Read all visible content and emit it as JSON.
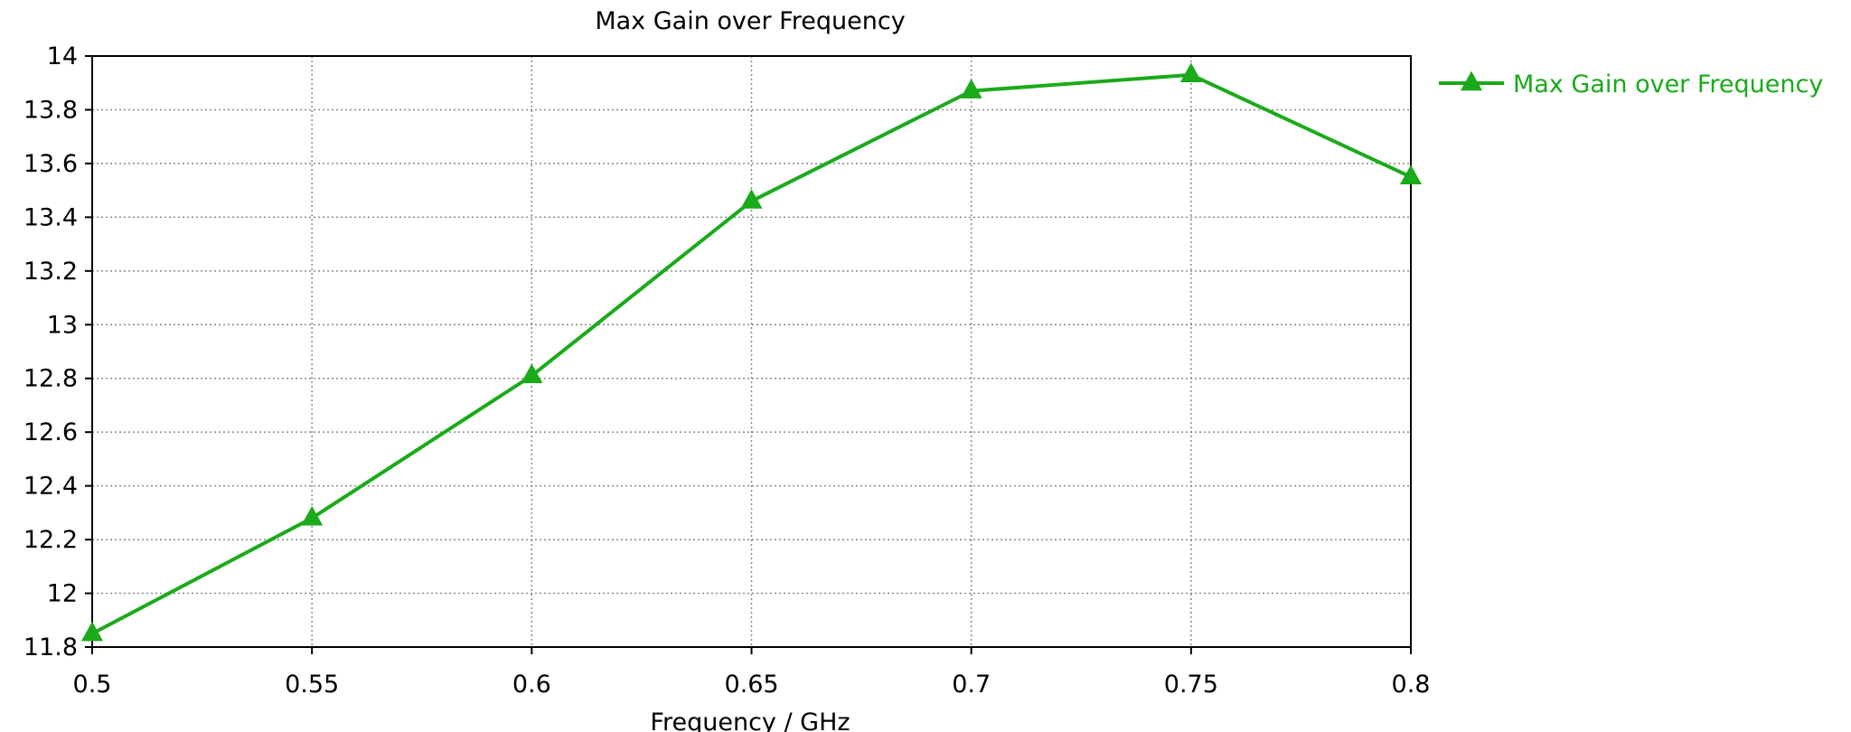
{
  "chart_data": {
    "type": "line",
    "title": "Max Gain over Frequency",
    "xlabel": "Frequency / GHz",
    "ylabel": "",
    "x": [
      0.5,
      0.55,
      0.6,
      0.65,
      0.7,
      0.75,
      0.8
    ],
    "series": [
      {
        "name": "Max Gain over Frequency",
        "values": [
          11.85,
          12.28,
          12.81,
          13.46,
          13.87,
          13.93,
          13.55
        ],
        "color": "#1aaa1a",
        "marker": "triangle"
      }
    ],
    "xlim": [
      0.5,
      0.8
    ],
    "ylim": [
      11.8,
      14
    ],
    "xticks": [
      "0.5",
      "0.55",
      "0.6",
      "0.65",
      "0.7",
      "0.75",
      "0.8"
    ],
    "yticks": [
      "11.8",
      "12",
      "12.2",
      "12.4",
      "12.6",
      "12.8",
      "13",
      "13.2",
      "13.4",
      "13.6",
      "13.8",
      "14"
    ],
    "grid": true,
    "grid_style": "dotted",
    "legend_position": "right"
  }
}
